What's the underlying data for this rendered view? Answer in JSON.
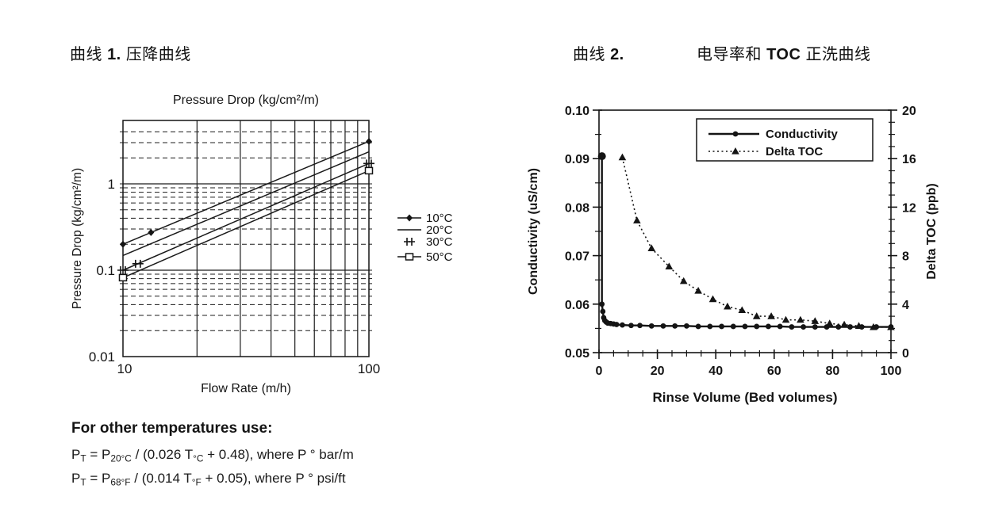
{
  "captions": {
    "fig1_prefix": "曲线",
    "fig1_number": "1.",
    "fig1_title": "压降曲线",
    "fig2_prefix": "曲线",
    "fig2_number": "2.",
    "fig2_title_part1": "电导率和",
    "fig2_title_bold": "TOC",
    "fig2_title_part2": "正洗曲线"
  },
  "chart_data": [
    {
      "type": "line",
      "title": "Pressure Drop (kg/cm²/m)",
      "xlabel": "Flow Rate (m/h)",
      "ylabel": "Pressure Drop (kg/cm²/m)",
      "xscale": "log",
      "yscale": "log",
      "xlim": [
        10,
        100
      ],
      "ylim": [
        0.01,
        5.4
      ],
      "xtick_labels": [
        "10",
        "100"
      ],
      "ytick_labels": [
        "1",
        "0.1",
        "0.01"
      ],
      "yticks": [
        1,
        0.1,
        0.01
      ],
      "grid_x_solid": [
        20,
        30,
        40,
        50,
        60,
        70,
        80,
        90
      ],
      "grid_y_solid": [
        0.1,
        1
      ],
      "grid_y_dashed": [
        0.02,
        0.03,
        0.04,
        0.05,
        0.06,
        0.07,
        0.08,
        0.09,
        0.2,
        0.3,
        0.4,
        0.5,
        0.6,
        0.7,
        0.8,
        0.9,
        2,
        3,
        4
      ],
      "legend_position": "right",
      "series": [
        {
          "name": "10°C",
          "marker": "diamond",
          "line": "solid",
          "points": [
            [
              10,
              0.2
            ],
            [
              100,
              3.1
            ]
          ],
          "markers_at": [
            10,
            13,
            100
          ]
        },
        {
          "name": "20°C",
          "marker": "none",
          "line": "solid",
          "points": [
            [
              10,
              0.148
            ],
            [
              100,
              2.35
            ]
          ],
          "markers_at": []
        },
        {
          "name": "30°C",
          "marker": "plusplus",
          "line": "solid",
          "points": [
            [
              10,
              0.1
            ],
            [
              100,
              1.72
            ]
          ],
          "markers_at": [
            10,
            11.5,
            100
          ]
        },
        {
          "name": "50°C",
          "marker": "square",
          "line": "solid",
          "points": [
            [
              10,
              0.082
            ],
            [
              100,
              1.42
            ]
          ],
          "markers_at": [
            10,
            100
          ]
        }
      ]
    },
    {
      "type": "line",
      "title": "",
      "xlabel": "Rinse Volume  (Bed volumes)",
      "ylabel_left": "Conductivity  (uS/cm)",
      "ylabel_right": "Delta TOC  (ppb)",
      "xlim": [
        0,
        100
      ],
      "ylim_left": [
        0.05,
        0.1
      ],
      "ylim_right": [
        0,
        20
      ],
      "xticks": [
        0,
        20,
        40,
        60,
        80,
        100
      ],
      "xtick_minor_step": 5,
      "yticks_left": [
        "0.05",
        "0.06",
        "0.07",
        "0.08",
        "0.09",
        "0.10"
      ],
      "ytick_left_minor_step": 0.005,
      "yticks_right": [
        "0",
        "4",
        "8",
        "12",
        "16",
        "20"
      ],
      "ytick_right_minor_step": 1,
      "legend_position": "top-inside-box",
      "series": [
        {
          "name": "Conductivity",
          "axis": "left",
          "marker": "circle",
          "line": "solid",
          "points": [
            [
              1,
              0.0905
            ],
            [
              1,
              0.06
            ],
            [
              1.3,
              0.0585
            ],
            [
              1.6,
              0.0572
            ],
            [
              2,
              0.0566
            ],
            [
              2.5,
              0.0563
            ],
            [
              3,
              0.0561
            ],
            [
              4,
              0.056
            ],
            [
              5,
              0.0559
            ],
            [
              6,
              0.0558
            ],
            [
              8,
              0.0557
            ],
            [
              11,
              0.0556
            ],
            [
              14,
              0.0556
            ],
            [
              18,
              0.0555
            ],
            [
              22,
              0.0555
            ],
            [
              26,
              0.0555
            ],
            [
              30,
              0.0555
            ],
            [
              34,
              0.0554
            ],
            [
              38,
              0.0554
            ],
            [
              42,
              0.0554
            ],
            [
              46,
              0.0554
            ],
            [
              50,
              0.0554
            ],
            [
              54,
              0.0554
            ],
            [
              58,
              0.0554
            ],
            [
              62,
              0.0554
            ],
            [
              66,
              0.0553
            ],
            [
              70,
              0.0553
            ],
            [
              74,
              0.0553
            ],
            [
              78,
              0.0553
            ],
            [
              82,
              0.0553
            ],
            [
              86,
              0.0553
            ],
            [
              90,
              0.0553
            ],
            [
              95,
              0.0553
            ],
            [
              100,
              0.0553
            ]
          ]
        },
        {
          "name": "Delta TOC",
          "axis": "right",
          "marker": "triangle",
          "line": "dotted",
          "points": [
            [
              8,
              16.1
            ],
            [
              13,
              10.9
            ],
            [
              18,
              8.6
            ],
            [
              24,
              7.1
            ],
            [
              29,
              5.9
            ],
            [
              34,
              5.1
            ],
            [
              39,
              4.4
            ],
            [
              44,
              3.8
            ],
            [
              49,
              3.5
            ],
            [
              54,
              3.0
            ],
            [
              59,
              3.0
            ],
            [
              64,
              2.7
            ],
            [
              69,
              2.7
            ],
            [
              74,
              2.6
            ],
            [
              79,
              2.4
            ],
            [
              84,
              2.3
            ],
            [
              89,
              2.2
            ],
            [
              94,
              2.1
            ],
            [
              100,
              2.1
            ]
          ]
        }
      ]
    }
  ],
  "formulas": {
    "heading": "For other temperatures use:",
    "lines": [
      {
        "parts": [
          {
            "t": "P"
          },
          {
            "t": "T",
            "sub": true
          },
          {
            "t": " = P"
          },
          {
            "t": "20°C",
            "sub": true
          },
          {
            "t": " / (0.026 T"
          },
          {
            "t": "°C",
            "sub": true
          },
          {
            "t": " + 0.48), where P ° bar/m"
          }
        ]
      },
      {
        "parts": [
          {
            "t": "P"
          },
          {
            "t": "T",
            "sub": true
          },
          {
            "t": " = P"
          },
          {
            "t": "68°F",
            "sub": true
          },
          {
            "t": " / (0.014 T"
          },
          {
            "t": "°F",
            "sub": true
          },
          {
            "t": " + 0.05), where P ° psi/ft"
          }
        ]
      }
    ]
  }
}
